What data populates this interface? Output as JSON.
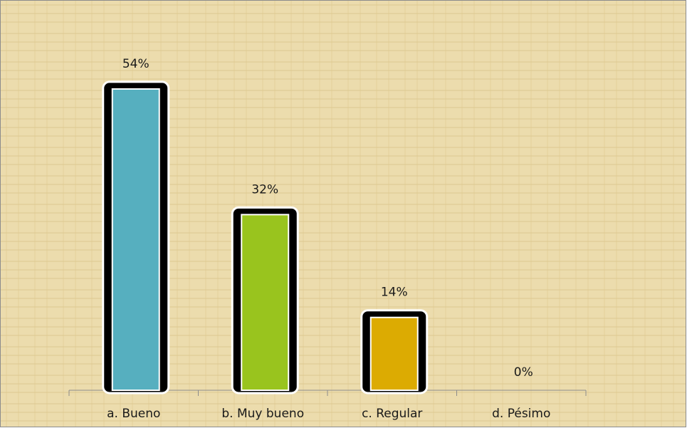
{
  "chart_data": {
    "type": "bar",
    "categories": [
      "a. Bueno",
      "b. Muy bueno",
      "c. Regular",
      "d. Pésimo"
    ],
    "values": [
      54,
      32,
      14,
      0
    ],
    "value_labels": [
      "54%",
      "32%",
      "14%",
      "0%"
    ],
    "colors": [
      "#56afbf",
      "#99c41e",
      "#dcab02",
      null
    ]
  }
}
